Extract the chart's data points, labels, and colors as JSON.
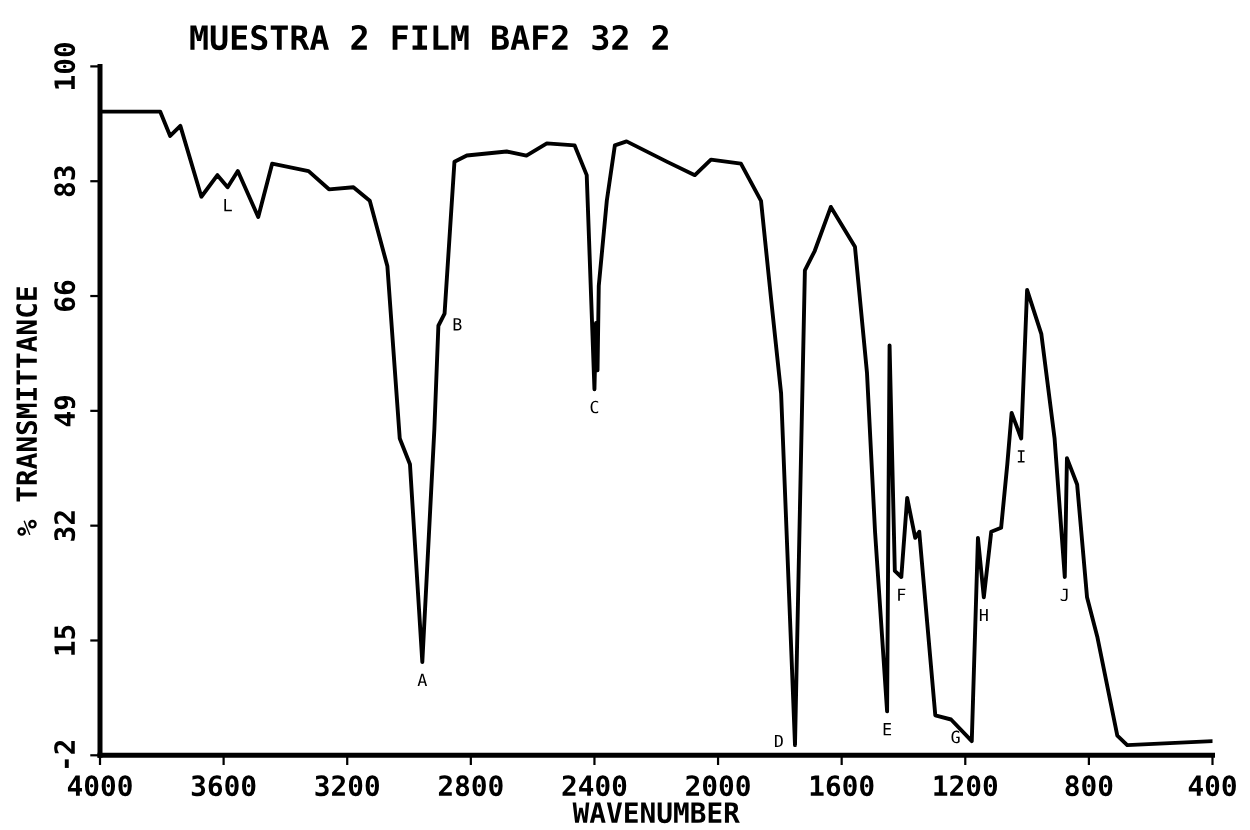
{
  "chart_data": {
    "type": "line",
    "title": "MUESTRA 2 FILM BAF2 32 2",
    "xlabel": "WAVENUMBER",
    "ylabel": "% TRANSMITTANCE",
    "x": [
      4000,
      3805,
      3773,
      3740,
      3672,
      3620,
      3587,
      3554,
      3488,
      3443,
      3325,
      3259,
      3180,
      3127,
      3070,
      3030,
      2997,
      2957,
      2918,
      2905,
      2885,
      2853,
      2813,
      2684,
      2620,
      2554,
      2464,
      2425,
      2400,
      2395,
      2390,
      2386,
      2360,
      2334,
      2296,
      2166,
      2075,
      2023,
      1926,
      1861,
      1828,
      1796,
      1751,
      1719,
      1687,
      1635,
      1557,
      1518,
      1492,
      1453,
      1445,
      1428,
      1407,
      1388,
      1362,
      1349,
      1297,
      1246,
      1179,
      1159,
      1140,
      1116,
      1084,
      1064,
      1050,
      1019,
      1000,
      954,
      911,
      878,
      871,
      838,
      806,
      773,
      708,
      676,
      400
    ],
    "series": [
      {
        "color": "#000000",
        "values": [
          93.3,
          93.3,
          89.7,
          91.2,
          80.7,
          83.9,
          82.1,
          84.5,
          77.7,
          85.6,
          84.5,
          81.8,
          82.1,
          80.1,
          70.4,
          44.9,
          41.1,
          11.8,
          46.3,
          61.6,
          63.4,
          85.9,
          86.8,
          87.4,
          86.8,
          88.6,
          88.3,
          83.9,
          52.2,
          62,
          55,
          67.5,
          80.1,
          88.3,
          88.9,
          85.9,
          83.9,
          86.2,
          85.6,
          80.1,
          65.4,
          51.6,
          -0.5,
          69.8,
          72.7,
          79.2,
          73.3,
          54.6,
          31.1,
          4.5,
          58.7,
          25.3,
          24.4,
          36.1,
          30.2,
          31.1,
          3.9,
          3.3,
          0.1,
          30.2,
          21.4,
          31.1,
          31.7,
          41.1,
          48.7,
          44.9,
          66.9,
          60.4,
          44.9,
          24.4,
          42.0,
          38.1,
          21.4,
          15.6,
          0.9,
          -0.5,
          0.1
        ]
      }
    ],
    "xlim": [
      4000,
      400
    ],
    "ylim": [
      -2,
      100
    ],
    "xticks": [
      4000,
      3600,
      3200,
      2800,
      2400,
      2000,
      1600,
      1200,
      800,
      400
    ],
    "yticks": [
      -2,
      15,
      32,
      49,
      66,
      83,
      100
    ],
    "grid": false,
    "legend": false,
    "marker": "none",
    "line_style": "solid",
    "annotations": [
      {
        "text": "L",
        "x": 3587,
        "y": 82.1
      },
      {
        "text": "B",
        "x": 2905,
        "y": 61.6
      },
      {
        "text": "C",
        "x": 2400,
        "y": 52.2
      },
      {
        "text": "A",
        "x": 2957,
        "y": 11.8
      },
      {
        "text": "D",
        "x": 1751,
        "y": -0.5
      },
      {
        "text": "E",
        "x": 1453,
        "y": 4.5
      },
      {
        "text": "F",
        "x": 1407,
        "y": 24.4
      },
      {
        "text": "G",
        "x": 1179,
        "y": 0.1
      },
      {
        "text": "H",
        "x": 1140,
        "y": 21.4
      },
      {
        "text": "I",
        "x": 1019,
        "y": 44.9
      },
      {
        "text": "J",
        "x": 878,
        "y": 24.4
      }
    ]
  }
}
